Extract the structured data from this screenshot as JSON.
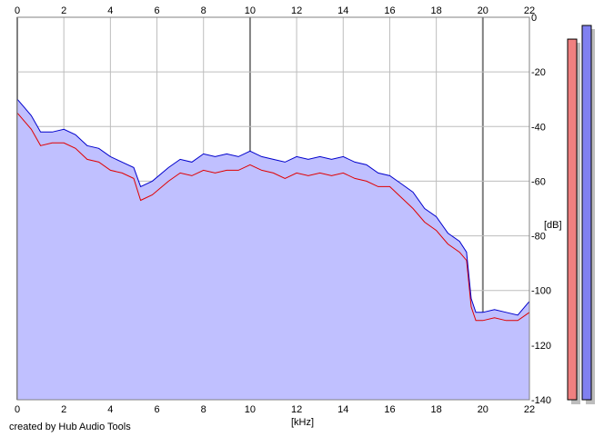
{
  "chart_data": {
    "type": "area",
    "xlabel": "[kHz]",
    "ylabel": "[dB]",
    "xlim": [
      0,
      22
    ],
    "ylim": [
      -140,
      0
    ],
    "x_ticks": [
      0,
      2,
      4,
      6,
      8,
      10,
      12,
      14,
      16,
      18,
      20,
      22
    ],
    "y_ticks": [
      0,
      -20,
      -40,
      -60,
      -80,
      -100,
      -120,
      -140
    ],
    "x_tick_labels": [
      "0",
      "2",
      "4",
      "6",
      "8",
      "10",
      "12",
      "14",
      "16",
      "18",
      "20",
      "22"
    ],
    "y_tick_labels": [
      "0",
      "-20",
      "-40",
      "-60",
      "-80",
      "-100",
      "-120",
      "-140"
    ],
    "grid": true,
    "colors": {
      "fill": "#c0c0ff",
      "left_channel": "#e00000",
      "right_channel": "#0000cc",
      "grid": "#bdbdbd"
    },
    "series": [
      {
        "color": "#0000cc",
        "x": [
          0,
          0.3,
          0.6,
          1,
          1.5,
          2,
          2.5,
          3,
          3.5,
          4,
          4.5,
          5,
          5.3,
          5.8,
          6.5,
          7,
          7.5,
          8,
          8.5,
          9,
          9.5,
          10,
          10.5,
          11,
          11.5,
          12,
          12.5,
          13,
          13.5,
          14,
          14.5,
          15,
          15.5,
          16,
          16.5,
          17,
          17.5,
          18,
          18.5,
          19,
          19.3,
          19.5,
          19.7,
          20,
          20.5,
          21,
          21.5,
          22
        ],
        "y": [
          -30,
          -33,
          -36,
          -42,
          -42,
          -41,
          -43,
          -47,
          -48,
          -51,
          -53,
          -55,
          -62,
          -60,
          -55,
          -52,
          -53,
          -50,
          -51,
          -50,
          -51,
          -49,
          -51,
          -52,
          -53,
          -51,
          -52,
          -51,
          -52,
          -51,
          -53,
          -54,
          -57,
          -58,
          -61,
          -64,
          -70,
          -73,
          -79,
          -82,
          -86,
          -103,
          -108,
          -108,
          -107,
          -108,
          -109,
          -104
        ]
      },
      {
        "color": "#e00000",
        "x": [
          0,
          0.3,
          0.6,
          1,
          1.5,
          2,
          2.5,
          3,
          3.5,
          4,
          4.5,
          5,
          5.3,
          5.8,
          6.5,
          7,
          7.5,
          8,
          8.5,
          9,
          9.5,
          10,
          10.5,
          11,
          11.5,
          12,
          12.5,
          13,
          13.5,
          14,
          14.5,
          15,
          15.5,
          16,
          16.5,
          17,
          17.5,
          18,
          18.5,
          19,
          19.3,
          19.5,
          19.7,
          20,
          20.5,
          21,
          21.5,
          22
        ],
        "y": [
          -35,
          -38,
          -41,
          -47,
          -46,
          -46,
          -48,
          -52,
          -53,
          -56,
          -57,
          -59,
          -67,
          -65,
          -60,
          -57,
          -58,
          -56,
          -57,
          -56,
          -56,
          -54,
          -56,
          -57,
          -59,
          -57,
          -58,
          -57,
          -58,
          -57,
          -59,
          -60,
          -62,
          -62,
          -66,
          -70,
          -75,
          -78,
          -83,
          -86,
          -89,
          -106,
          -111,
          -111,
          -110,
          -111,
          -111,
          -108
        ]
      }
    ],
    "meters": [
      {
        "color": "#f08080",
        "peak_db": -8
      },
      {
        "color": "#8080f0",
        "peak_db": -3
      }
    ]
  },
  "footer": {
    "credit": "created by Hub Audio Tools"
  }
}
